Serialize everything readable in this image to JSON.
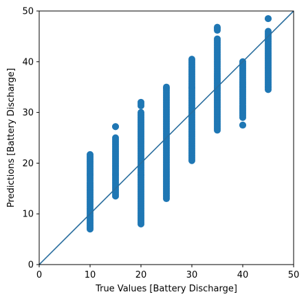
{
  "chart_data": {
    "type": "scatter",
    "xlabel": "True Values [Battery Discharge]",
    "ylabel": "Predictions [Battery Discharge]",
    "xlim": [
      0,
      50
    ],
    "ylim": [
      0,
      50
    ],
    "x_ticks": [
      0,
      10,
      20,
      30,
      40,
      50
    ],
    "y_ticks": [
      0,
      10,
      20,
      30,
      40,
      50
    ],
    "x_tick_labels": [
      "0",
      "10",
      "20",
      "30",
      "40",
      "50"
    ],
    "y_tick_labels": [
      "0",
      "10",
      "20",
      "30",
      "40",
      "50"
    ],
    "grid": false,
    "series": [
      {
        "color": "#1f77b4",
        "clusters": [
          {
            "x": 10,
            "y_min": 7.0,
            "y_max": 21.7
          },
          {
            "x": 15,
            "y_min": 13.5,
            "y_max": 25.0
          },
          {
            "x": 15,
            "y_min": 27.2,
            "y_max": 27.2
          },
          {
            "x": 20,
            "y_min": 8.0,
            "y_max": 30.0
          },
          {
            "x": 20,
            "y_min": 31.3,
            "y_max": 32.0
          },
          {
            "x": 25,
            "y_min": 13.0,
            "y_max": 35.0
          },
          {
            "x": 30,
            "y_min": 20.5,
            "y_max": 40.5
          },
          {
            "x": 35,
            "y_min": 26.5,
            "y_max": 44.5
          },
          {
            "x": 35,
            "y_min": 46.2,
            "y_max": 46.8
          },
          {
            "x": 40,
            "y_min": 29.0,
            "y_max": 40.0
          },
          {
            "x": 40,
            "y_min": 27.5,
            "y_max": 27.5
          },
          {
            "x": 45,
            "y_min": 34.5,
            "y_max": 46.0
          },
          {
            "x": 45,
            "y_min": 48.5,
            "y_max": 48.5
          }
        ]
      }
    ],
    "reference_line": {
      "from": [
        0,
        0
      ],
      "to": [
        50,
        50
      ],
      "color": "#2a6e9e"
    }
  }
}
